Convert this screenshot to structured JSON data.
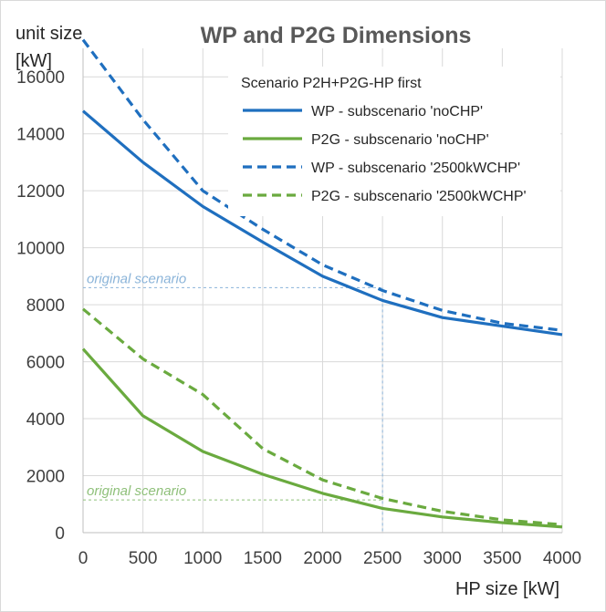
{
  "chart_data": {
    "type": "line",
    "title": "WP and P2G Dimensions",
    "ylabel_lines": [
      "unit size",
      "[kW]"
    ],
    "xlabel": "HP size [kW]",
    "x": [
      0,
      500,
      1000,
      1500,
      2000,
      2500,
      3000,
      3500,
      4000
    ],
    "xlim": [
      0,
      4000
    ],
    "ylim": [
      0,
      17000
    ],
    "xticks": [
      0,
      500,
      1000,
      1500,
      2000,
      2500,
      3000,
      3500,
      4000
    ],
    "yticks": [
      0,
      2000,
      4000,
      6000,
      8000,
      10000,
      12000,
      14000,
      16000
    ],
    "grid": true,
    "legend": {
      "title": "Scenario P2H+P2G-HP first",
      "placement": "top-right"
    },
    "series": [
      {
        "name": "WP  - subscenario 'noCHP'",
        "color": "#1f6fbf",
        "dash": "solid",
        "values": [
          14800,
          13000,
          11450,
          10200,
          9000,
          8150,
          7550,
          7250,
          6950
        ]
      },
      {
        "name": "P2G  - subscenario 'noCHP'",
        "color": "#6aaa3f",
        "dash": "solid",
        "values": [
          6450,
          4100,
          2850,
          2050,
          1380,
          850,
          550,
          350,
          200
        ]
      },
      {
        "name": "WP - subscenario '2500kWCHP'",
        "color": "#1f6fbf",
        "dash": "dashed",
        "values": [
          17300,
          14500,
          12000,
          10650,
          9400,
          8500,
          7800,
          7350,
          7100
        ]
      },
      {
        "name": "P2G - subscenario '2500kWCHP'",
        "color": "#6aaa3f",
        "dash": "dashed",
        "values": [
          7850,
          6100,
          4850,
          2950,
          1850,
          1200,
          750,
          450,
          280
        ]
      }
    ],
    "annotations": [
      {
        "text": "original scenario",
        "y": 8600,
        "color": "#8bb4d9"
      },
      {
        "text": "original scenario",
        "y": 1150,
        "color": "#8fc07a"
      }
    ],
    "reference_x": 2500
  }
}
